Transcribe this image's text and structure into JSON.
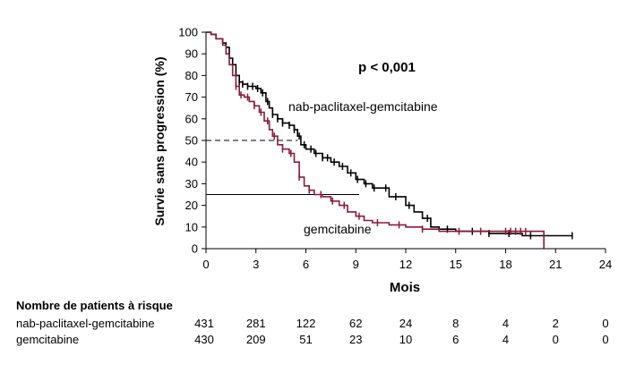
{
  "chart_data": {
    "type": "line",
    "xlabel": "Mois",
    "ylabel": "Survie sans progression (%)",
    "xlim": [
      0,
      24
    ],
    "ylim": [
      0,
      100
    ],
    "xticks": [
      0,
      3,
      6,
      9,
      12,
      15,
      18,
      21,
      24
    ],
    "yticks": [
      0,
      10,
      20,
      30,
      40,
      50,
      60,
      70,
      80,
      90,
      100
    ],
    "grid": false,
    "annotation": "p < 0,001",
    "reference_lines": [
      {
        "y": 50,
        "x_end": 5.5,
        "style": "dashed"
      },
      {
        "y": 25,
        "x_end": 9.2,
        "style": "solid"
      }
    ],
    "series": [
      {
        "name": "nab-paclitaxel-gemcitabine",
        "color": "#000000",
        "points": [
          [
            0,
            100
          ],
          [
            0.3,
            99
          ],
          [
            0.6,
            97
          ],
          [
            1.0,
            95
          ],
          [
            1.2,
            93
          ],
          [
            1.4,
            88
          ],
          [
            1.6,
            85
          ],
          [
            1.8,
            80
          ],
          [
            2.0,
            77
          ],
          [
            2.2,
            76
          ],
          [
            2.5,
            75
          ],
          [
            3.0,
            74
          ],
          [
            3.3,
            72
          ],
          [
            3.6,
            68
          ],
          [
            3.8,
            65
          ],
          [
            4.0,
            62
          ],
          [
            4.3,
            60
          ],
          [
            4.6,
            58
          ],
          [
            5.0,
            57
          ],
          [
            5.3,
            55
          ],
          [
            5.5,
            52
          ],
          [
            5.7,
            48
          ],
          [
            6.0,
            46
          ],
          [
            6.5,
            44
          ],
          [
            7.0,
            42
          ],
          [
            7.5,
            40
          ],
          [
            8.0,
            38
          ],
          [
            8.5,
            35
          ],
          [
            9.0,
            32
          ],
          [
            9.5,
            30
          ],
          [
            10.0,
            28
          ],
          [
            11.0,
            24
          ],
          [
            12.0,
            20
          ],
          [
            12.5,
            17
          ],
          [
            13.0,
            14
          ],
          [
            13.5,
            10
          ],
          [
            14.0,
            9
          ],
          [
            15.0,
            8
          ],
          [
            17.0,
            7
          ],
          [
            19.0,
            6
          ],
          [
            22.0,
            6
          ]
        ],
        "censor_x": [
          2.0,
          2.2,
          2.5,
          2.8,
          3.1,
          3.4,
          3.7,
          4.0,
          4.3,
          4.6,
          5.0,
          5.3,
          5.6,
          5.9,
          6.3,
          6.6,
          7.0,
          7.3,
          7.7,
          8.2,
          8.7,
          9.1,
          9.6,
          10.1,
          10.8,
          11.4,
          12.2,
          13.3,
          14.5,
          16.0,
          17.0,
          18.2,
          19.5,
          22.0
        ]
      },
      {
        "name": "gemcitabine",
        "color": "#8b1a3a",
        "points": [
          [
            0,
            100
          ],
          [
            0.3,
            99
          ],
          [
            0.6,
            97
          ],
          [
            1.0,
            94
          ],
          [
            1.2,
            90
          ],
          [
            1.4,
            85
          ],
          [
            1.6,
            80
          ],
          [
            1.8,
            75
          ],
          [
            2.0,
            71
          ],
          [
            2.3,
            70
          ],
          [
            2.6,
            68
          ],
          [
            2.9,
            66
          ],
          [
            3.2,
            63
          ],
          [
            3.5,
            59
          ],
          [
            3.8,
            55
          ],
          [
            4.0,
            52
          ],
          [
            4.3,
            48
          ],
          [
            4.6,
            46
          ],
          [
            5.0,
            44
          ],
          [
            5.3,
            40
          ],
          [
            5.6,
            33
          ],
          [
            5.9,
            29
          ],
          [
            6.2,
            27
          ],
          [
            6.5,
            25
          ],
          [
            7.0,
            24
          ],
          [
            7.5,
            22
          ],
          [
            8.0,
            20
          ],
          [
            8.5,
            17
          ],
          [
            9.0,
            15
          ],
          [
            9.5,
            13
          ],
          [
            10.0,
            12
          ],
          [
            11.0,
            11
          ],
          [
            12.0,
            10
          ],
          [
            13.0,
            9
          ],
          [
            14.0,
            8
          ],
          [
            16.0,
            8
          ],
          [
            18.0,
            8
          ],
          [
            20.3,
            8
          ],
          [
            20.3,
            0
          ]
        ],
        "censor_x": [
          1.8,
          2.1,
          2.5,
          2.9,
          3.3,
          3.7,
          4.1,
          4.6,
          5.1,
          5.6,
          6.2,
          6.9,
          7.6,
          8.3,
          9.2,
          10.3,
          11.6,
          13.0,
          15.2,
          16.5,
          18.0,
          18.3,
          18.6,
          18.9,
          19.2
        ]
      }
    ],
    "series_labels": [
      "nab-paclitaxel-gemcitabine",
      "gemcitabine"
    ],
    "risk_table": {
      "title": "Nombre de patients à risque",
      "rows": [
        {
          "label": "nab-paclitaxel-gemcitabine",
          "values": [
            "431",
            "281",
            "122",
            "62",
            "24",
            "8",
            "4",
            "2",
            "0"
          ]
        },
        {
          "label": "gemcitabine",
          "values": [
            "430",
            "209",
            "51",
            "23",
            "10",
            "6",
            "4",
            "0",
            "0"
          ]
        }
      ]
    }
  }
}
